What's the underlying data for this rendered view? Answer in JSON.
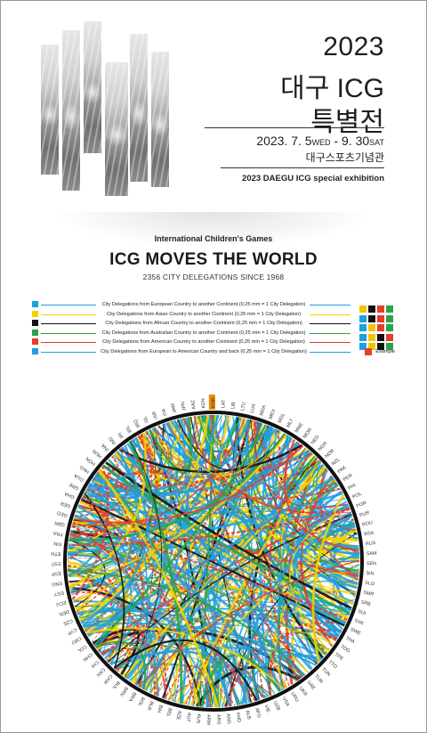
{
  "header": {
    "year": "2023",
    "title": "대구 ICG",
    "subtitle": "특별전",
    "date_start": "2023. 7. 5",
    "date_start_day": "WED",
    "date_sep": " - ",
    "date_end": "9. 30",
    "date_end_day": "SAT",
    "venue": "대구스포츠기념관",
    "exhibition_en": "2023 DAEGU ICG special exhibition"
  },
  "headline": {
    "kicker": "International Children's Games",
    "title": "ICG MOVES THE WORLD",
    "tagline": "2356 CITY DELEGATIONS SINCE 1968"
  },
  "legend": {
    "rows": [
      {
        "text": "City Delegations from European Country to another Continent (0,25 mm = 1 City Delegation)",
        "color": "#1e9fe0",
        "squares": [
          "#f2c400",
          "#111111",
          "#e63c2a",
          "#2aa24a"
        ]
      },
      {
        "text": "City Delegations from Asian Country to another Continent (0,25 mm = 1 City Delegation)",
        "color": "#f2d200",
        "squares": [
          "#1e9fe0",
          "#111111",
          "#e63c2a",
          "#2aa24a"
        ]
      },
      {
        "text": "City Delegations from African Country to another Continent (0,25 mm = 1 City Delegation)",
        "color": "#111111",
        "squares": [
          "#1e9fe0",
          "#f2c400",
          "#e63c2a",
          "#2aa24a"
        ]
      },
      {
        "text": "City Delegations from Australian Country to another Continent (0,25 mm = 1 City Delegation)",
        "color": "#2aa24a",
        "squares": [
          "#1e9fe0",
          "#f2c400",
          "#111111",
          "#e63c2a"
        ]
      },
      {
        "text": "City Delegations from American Country to another Continent (0,25 mm = 1 City Delegation)",
        "color": "#e63c2a",
        "squares": [
          "#1e9fe0",
          "#f2c400",
          "#111111",
          "#2aa24a"
        ]
      },
      {
        "text": "City Delegations from European to American Country and back (0,25 mm = 1 City Delegation)",
        "color": "#1e9fe0",
        "squares": [
          "#e63c2a"
        ]
      }
    ],
    "example_label": "Example"
  },
  "circle": {
    "highlight_code": "KOR",
    "highlight_color": "#f08a00",
    "country_codes": [
      "LAT",
      "LIB",
      "LTU",
      "LUX",
      "MDA",
      "MEX",
      "MGL",
      "MLT",
      "MNE",
      "MOR",
      "NED",
      "NGR",
      "NOR",
      "NZL",
      "PAK",
      "PER",
      "PHI",
      "POL",
      "POR",
      "PUR",
      "ROU",
      "RSA",
      "RUS",
      "SAM",
      "SEN",
      "SIN",
      "SLO",
      "SMR",
      "SRB",
      "SUI",
      "SVK",
      "SWE",
      "THA",
      "TOG",
      "TPE",
      "TTO",
      "TUN",
      "TUR",
      "UAE",
      "UKR",
      "URU",
      "USA",
      "UZB",
      "VIE",
      "AFG",
      "ALB",
      "AND",
      "ANG",
      "ARG",
      "ARM",
      "AUS",
      "AUT",
      "AZE",
      "BEL",
      "BIH",
      "BLR",
      "BOL",
      "BRA",
      "BRN",
      "BUL",
      "CAM",
      "CAN",
      "CHI",
      "CHN",
      "COL",
      "CRO",
      "CYP",
      "CZE",
      "DEN",
      "ECU",
      "EGY",
      "ENG",
      "ESP",
      "EST",
      "ETH",
      "FIN",
      "FRA",
      "GBR",
      "GEO",
      "GER",
      "GHA",
      "GRE",
      "GUA",
      "HKG",
      "HON",
      "HUN",
      "INA",
      "IND",
      "IRI",
      "IRL",
      "IRQ",
      "ISL",
      "ISR",
      "ITA",
      "JAM",
      "JPN",
      "KAZ",
      "KEN",
      "KOR"
    ],
    "line_colors": {
      "europe": "#1e9fe0",
      "asia": "#f2d200",
      "africa": "#111111",
      "oceania": "#2aa24a",
      "america": "#e63c2a"
    }
  }
}
